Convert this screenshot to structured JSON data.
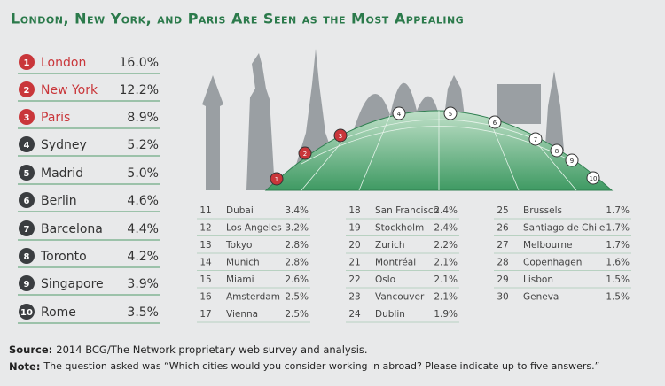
{
  "header": {
    "title": "London, New York, and Paris Are Seen as the Most Appealing"
  },
  "top_ten": [
    {
      "rank": "1",
      "city": "London",
      "share": "16.0%"
    },
    {
      "rank": "2",
      "city": "New York",
      "share": "12.2%"
    },
    {
      "rank": "3",
      "city": "Paris",
      "share": "8.9%"
    },
    {
      "rank": "4",
      "city": "Sydney",
      "share": "5.2%"
    },
    {
      "rank": "5",
      "city": "Madrid",
      "share": "5.0%"
    },
    {
      "rank": "6",
      "city": "Berlin",
      "share": "4.6%"
    },
    {
      "rank": "7",
      "city": "Barcelona",
      "share": "4.4%"
    },
    {
      "rank": "8",
      "city": "Toronto",
      "share": "4.2%"
    },
    {
      "rank": "9",
      "city": "Singapore",
      "share": "3.9%"
    },
    {
      "rank": "10",
      "city": "Rome",
      "share": "3.5%"
    }
  ],
  "table": {
    "columns": [
      [
        {
          "rank": "11",
          "city": "Dubai",
          "share": "3.4%"
        },
        {
          "rank": "12",
          "city": "Los Angeles",
          "share": "3.2%"
        },
        {
          "rank": "13",
          "city": "Tokyo",
          "share": "2.8%"
        },
        {
          "rank": "14",
          "city": "Munich",
          "share": "2.8%"
        },
        {
          "rank": "15",
          "city": "Miami",
          "share": "2.6%"
        },
        {
          "rank": "16",
          "city": "Amsterdam",
          "share": "2.5%"
        },
        {
          "rank": "17",
          "city": "Vienna",
          "share": "2.5%"
        }
      ],
      [
        {
          "rank": "18",
          "city": "San Francisco",
          "share": "2.4%"
        },
        {
          "rank": "19",
          "city": "Stockholm",
          "share": "2.4%"
        },
        {
          "rank": "20",
          "city": "Zurich",
          "share": "2.2%"
        },
        {
          "rank": "21",
          "city": "Montréal",
          "share": "2.1%"
        },
        {
          "rank": "22",
          "city": "Oslo",
          "share": "2.1%"
        },
        {
          "rank": "23",
          "city": "Vancouver",
          "share": "2.1%"
        },
        {
          "rank": "24",
          "city": "Dublin",
          "share": "1.9%"
        }
      ],
      [
        {
          "rank": "25",
          "city": "Brussels",
          "share": "1.7%"
        },
        {
          "rank": "26",
          "city": "Santiago de Chile",
          "share": "1.7%"
        },
        {
          "rank": "27",
          "city": "Melbourne",
          "share": "1.7%"
        },
        {
          "rank": "28",
          "city": "Copenhagen",
          "share": "1.6%"
        },
        {
          "rank": "29",
          "city": "Lisbon",
          "share": "1.5%"
        },
        {
          "rank": "30",
          "city": "Geneva",
          "share": "1.5%"
        }
      ]
    ]
  },
  "footer": {
    "source_label": "Source:",
    "source": "2014 BCG/The Network proprietary web survey and analysis.",
    "note_label": "Note:",
    "note": "The question asked was “Which cities would you consider working in abroad? Please indicate up to five answers.”"
  }
}
